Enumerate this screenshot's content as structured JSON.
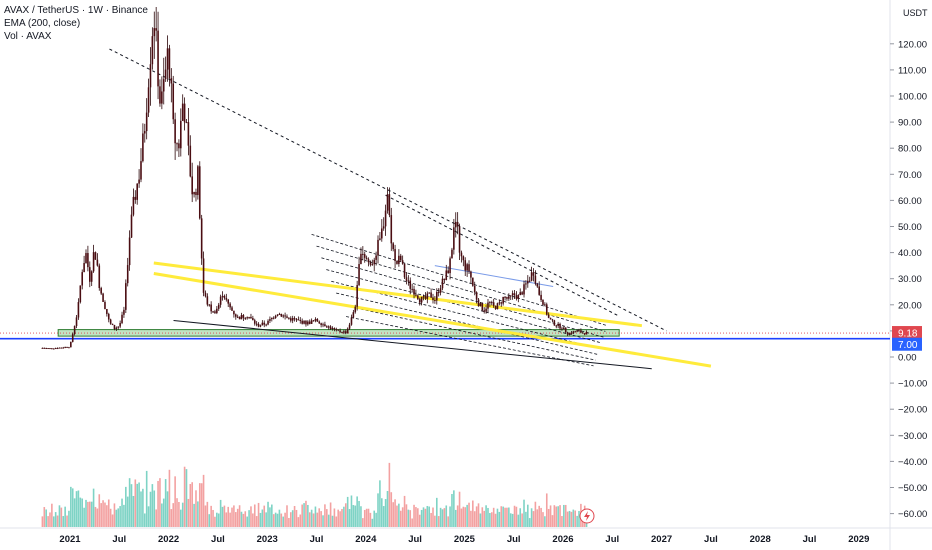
{
  "legend": {
    "title": "AVAX / TetherUS · 1W · Binance",
    "ema": "EMA (200, close)",
    "vol": "Vol · AVAX"
  },
  "axis": {
    "unit": "USDT"
  },
  "colors": {
    "candle_body": "#4a0d12",
    "candle_wick": "#2a0508",
    "yellow": "#ffeb3b",
    "blue_line": "#1e40ff",
    "red_badge": "#e0474f",
    "blue_badge": "#2962ff",
    "vol_up": "#7ed3c5",
    "vol_down": "#f3a1a1",
    "green_zone": "#4caf50"
  },
  "badges": {
    "price": "9.18",
    "level": "7.00"
  },
  "chart_data": {
    "type": "candlestick",
    "ylim": [
      -65,
      133
    ],
    "y_ticks": [
      -60,
      -50,
      -40,
      -30,
      -20,
      -10,
      0,
      10,
      20,
      30,
      40,
      50,
      60,
      70,
      80,
      90,
      100,
      110,
      120
    ],
    "y_tick_labels": [
      "−60.00",
      "−50.00",
      "−40.00",
      "−30.00",
      "−20.00",
      "−10.00",
      "0.00",
      "10.00",
      "20.00",
      "30.00",
      "40.00",
      "50.00",
      "60.00",
      "70.00",
      "80.00",
      "90.00",
      "100.00",
      "110.00",
      "120.00"
    ],
    "x_tick_labels": [
      "2021",
      "Jul",
      "2022",
      "Jul",
      "2023",
      "Jul",
      "2024",
      "Jul",
      "2025",
      "Jul",
      "2026",
      "Jul",
      "2027",
      "Jul",
      "2028",
      "Jul",
      "2029"
    ],
    "x_ticks": [
      2021.0,
      2021.5,
      2022.0,
      2022.5,
      2023.0,
      2023.5,
      2024.0,
      2024.5,
      2025.0,
      2025.5,
      2026.0,
      2026.5,
      2027.0,
      2027.5,
      2028.0,
      2028.5,
      2029.0
    ],
    "xlim": [
      2020.7,
      2029.3
    ],
    "current_price": 9.18,
    "horizontal_level": 7.0,
    "close_path": [
      [
        2020.72,
        3.5
      ],
      [
        2020.8,
        3.3
      ],
      [
        2020.9,
        3.6
      ],
      [
        2021.0,
        4.0
      ],
      [
        2021.04,
        11
      ],
      [
        2021.08,
        18
      ],
      [
        2021.12,
        33
      ],
      [
        2021.16,
        40
      ],
      [
        2021.2,
        30
      ],
      [
        2021.25,
        42
      ],
      [
        2021.3,
        27
      ],
      [
        2021.35,
        20
      ],
      [
        2021.4,
        13
      ],
      [
        2021.45,
        11
      ],
      [
        2021.5,
        12
      ],
      [
        2021.55,
        18
      ],
      [
        2021.6,
        45
      ],
      [
        2021.65,
        60
      ],
      [
        2021.7,
        70
      ],
      [
        2021.75,
        85
      ],
      [
        2021.8,
        110
      ],
      [
        2021.85,
        133
      ],
      [
        2021.88,
        115
      ],
      [
        2021.92,
        95
      ],
      [
        2022.0,
        118
      ],
      [
        2022.05,
        85
      ],
      [
        2022.1,
        80
      ],
      [
        2022.15,
        100
      ],
      [
        2022.2,
        78
      ],
      [
        2022.25,
        60
      ],
      [
        2022.3,
        70
      ],
      [
        2022.35,
        25
      ],
      [
        2022.4,
        20
      ],
      [
        2022.45,
        17
      ],
      [
        2022.5,
        19
      ],
      [
        2022.55,
        25
      ],
      [
        2022.6,
        20
      ],
      [
        2022.7,
        15
      ],
      [
        2022.8,
        16
      ],
      [
        2022.9,
        12
      ],
      [
        2023.0,
        13
      ],
      [
        2023.1,
        17
      ],
      [
        2023.2,
        15
      ],
      [
        2023.3,
        14
      ],
      [
        2023.4,
        13
      ],
      [
        2023.5,
        14
      ],
      [
        2023.6,
        12
      ],
      [
        2023.7,
        10
      ],
      [
        2023.8,
        9.5
      ],
      [
        2023.85,
        14
      ],
      [
        2023.9,
        21
      ],
      [
        2023.95,
        42
      ],
      [
        2024.0,
        38
      ],
      [
        2024.05,
        35
      ],
      [
        2024.1,
        40
      ],
      [
        2024.15,
        45
      ],
      [
        2024.2,
        57
      ],
      [
        2024.22,
        63
      ],
      [
        2024.25,
        48
      ],
      [
        2024.3,
        35
      ],
      [
        2024.35,
        38
      ],
      [
        2024.4,
        30
      ],
      [
        2024.45,
        27
      ],
      [
        2024.5,
        25
      ],
      [
        2024.55,
        22
      ],
      [
        2024.6,
        22
      ],
      [
        2024.65,
        24
      ],
      [
        2024.7,
        22
      ],
      [
        2024.75,
        27
      ],
      [
        2024.8,
        30
      ],
      [
        2024.85,
        35
      ],
      [
        2024.9,
        50
      ],
      [
        2024.92,
        53
      ],
      [
        2024.95,
        40
      ],
      [
        2025.0,
        35
      ],
      [
        2025.05,
        33
      ],
      [
        2025.1,
        25
      ],
      [
        2025.15,
        20
      ],
      [
        2025.2,
        18
      ],
      [
        2025.25,
        21
      ],
      [
        2025.3,
        19
      ],
      [
        2025.35,
        20
      ],
      [
        2025.4,
        23
      ],
      [
        2025.45,
        22
      ],
      [
        2025.5,
        24
      ],
      [
        2025.55,
        23
      ],
      [
        2025.6,
        26
      ],
      [
        2025.7,
        33
      ],
      [
        2025.75,
        25
      ],
      [
        2025.8,
        21
      ],
      [
        2025.85,
        15
      ],
      [
        2025.9,
        13
      ],
      [
        2025.95,
        12
      ],
      [
        2026.0,
        11
      ],
      [
        2026.05,
        9
      ],
      [
        2026.1,
        9.5
      ],
      [
        2026.15,
        10
      ],
      [
        2026.2,
        9.2
      ],
      [
        2026.25,
        9.18
      ]
    ],
    "volume_scale": "relative",
    "trendlines": [
      {
        "style": "dashed",
        "color": "#131722",
        "points": [
          [
            2021.4,
            118
          ],
          [
            2027.05,
            10
          ]
        ]
      },
      {
        "style": "dashed",
        "color": "#131722",
        "points": [
          [
            2024.2,
            62
          ],
          [
            2026.55,
            16
          ]
        ]
      },
      {
        "style": "solid",
        "color": "#131722",
        "points": [
          [
            2022.05,
            14
          ],
          [
            2026.9,
            -4.5
          ]
        ]
      },
      {
        "style": "solid",
        "color": "#ffeb3b",
        "points": [
          [
            2021.85,
            36
          ],
          [
            2026.8,
            12
          ]
        ]
      },
      {
        "style": "solid",
        "color": "#ffeb3b",
        "points": [
          [
            2021.85,
            32
          ],
          [
            2027.5,
            -3.5
          ]
        ]
      },
      {
        "style": "solid",
        "color": "#7a9be8",
        "points": [
          [
            2024.7,
            35
          ],
          [
            2025.9,
            27
          ]
        ]
      }
    ],
    "zone": {
      "x0": 2020.88,
      "x1": 2026.57,
      "y0": 8,
      "y1": 10.5
    }
  }
}
